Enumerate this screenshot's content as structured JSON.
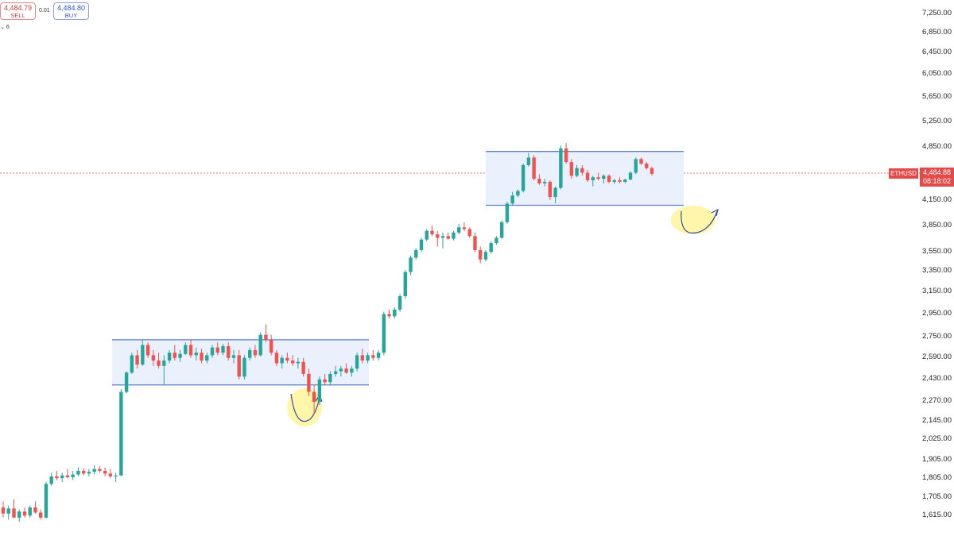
{
  "trade_panel": {
    "sell_price": "4,484.79",
    "sell_label": "SELL",
    "spread": "0.01",
    "buy_price": "4,484.80",
    "buy_label": "BUY",
    "quantity": "6"
  },
  "symbol": "ETHUSD",
  "last_price": "4,484.88",
  "countdown": "08:18:02",
  "colors": {
    "up": "#26a69a",
    "down": "#ef5350",
    "range_fill": "#eaf0fc",
    "range_line": "#5a7ed0",
    "highlight": "#fff59a",
    "tag": "#e34b4b"
  },
  "chart_data": {
    "type": "candlestick",
    "y_ticks": [
      7250,
      6850,
      6450,
      6050,
      5650,
      5250,
      4850,
      4150,
      3850,
      3550,
      3350,
      3150,
      2950,
      2750,
      2590,
      2430,
      2270,
      2145,
      2025,
      1905,
      1805,
      1705,
      1615
    ],
    "y_tick_labels": [
      "7,250.00",
      "6,850.00",
      "6,450.00",
      "6,050.00",
      "5,650.00",
      "5,250.00",
      "4,850.00",
      "4,150.00",
      "3,850.00",
      "3,550.00",
      "3,350.00",
      "3,150.00",
      "2,950.00",
      "2,750.00",
      "2,590.00",
      "2,430.00",
      "2,270.00",
      "2,145.00",
      "2,025.00",
      "1,905.00",
      "1,805.00",
      "1,705.00",
      "1,615.00"
    ],
    "ranges": [
      {
        "name": "range-1",
        "high": 2720,
        "low": 2380
      },
      {
        "name": "range-2",
        "high": 4780,
        "low": 4080
      }
    ],
    "candles": [
      [
        1650,
        1680,
        1600,
        1620
      ],
      [
        1620,
        1660,
        1590,
        1645
      ],
      [
        1645,
        1690,
        1630,
        1600
      ],
      [
        1600,
        1640,
        1580,
        1630
      ],
      [
        1630,
        1650,
        1600,
        1610
      ],
      [
        1610,
        1660,
        1600,
        1650
      ],
      [
        1650,
        1680,
        1620,
        1625
      ],
      [
        1625,
        1640,
        1590,
        1600
      ],
      [
        1600,
        1780,
        1595,
        1770
      ],
      [
        1770,
        1830,
        1760,
        1810
      ],
      [
        1810,
        1840,
        1790,
        1800
      ],
      [
        1800,
        1830,
        1780,
        1815
      ],
      [
        1815,
        1850,
        1800,
        1805
      ],
      [
        1805,
        1840,
        1790,
        1820
      ],
      [
        1820,
        1860,
        1810,
        1840
      ],
      [
        1840,
        1855,
        1815,
        1825
      ],
      [
        1825,
        1850,
        1810,
        1835
      ],
      [
        1835,
        1870,
        1820,
        1850
      ],
      [
        1850,
        1865,
        1830,
        1840
      ],
      [
        1840,
        1860,
        1810,
        1825
      ],
      [
        1825,
        1850,
        1800,
        1810
      ],
      [
        1810,
        1830,
        1780,
        1815
      ],
      [
        1815,
        2350,
        1810,
        2330
      ],
      [
        2330,
        2480,
        2320,
        2470
      ],
      [
        2470,
        2620,
        2460,
        2600
      ],
      [
        2600,
        2640,
        2500,
        2530
      ],
      [
        2530,
        2720,
        2520,
        2680
      ],
      [
        2680,
        2700,
        2580,
        2600
      ],
      [
        2600,
        2640,
        2520,
        2560
      ],
      [
        2560,
        2620,
        2500,
        2520
      ],
      [
        2520,
        2600,
        2380,
        2560
      ],
      [
        2560,
        2640,
        2540,
        2620
      ],
      [
        2620,
        2680,
        2560,
        2580
      ],
      [
        2580,
        2640,
        2550,
        2610
      ],
      [
        2610,
        2700,
        2600,
        2680
      ],
      [
        2680,
        2720,
        2580,
        2600
      ],
      [
        2600,
        2660,
        2560,
        2620
      ],
      [
        2620,
        2650,
        2540,
        2560
      ],
      [
        2560,
        2620,
        2540,
        2600
      ],
      [
        2600,
        2680,
        2580,
        2660
      ],
      [
        2660,
        2700,
        2600,
        2620
      ],
      [
        2620,
        2690,
        2600,
        2670
      ],
      [
        2670,
        2700,
        2560,
        2580
      ],
      [
        2580,
        2640,
        2540,
        2600
      ],
      [
        2600,
        2640,
        2420,
        2440
      ],
      [
        2440,
        2600,
        2420,
        2580
      ],
      [
        2580,
        2660,
        2560,
        2640
      ],
      [
        2640,
        2680,
        2580,
        2600
      ],
      [
        2600,
        2780,
        2590,
        2760
      ],
      [
        2760,
        2850,
        2700,
        2720
      ],
      [
        2720,
        2760,
        2600,
        2620
      ],
      [
        2620,
        2640,
        2520,
        2540
      ],
      [
        2540,
        2600,
        2500,
        2580
      ],
      [
        2580,
        2620,
        2540,
        2560
      ],
      [
        2560,
        2600,
        2520,
        2540
      ],
      [
        2540,
        2580,
        2500,
        2550
      ],
      [
        2550,
        2580,
        2440,
        2460
      ],
      [
        2460,
        2500,
        2300,
        2330
      ],
      [
        2330,
        2380,
        2180,
        2260
      ],
      [
        2260,
        2440,
        2240,
        2420
      ],
      [
        2420,
        2460,
        2380,
        2400
      ],
      [
        2400,
        2480,
        2380,
        2460
      ],
      [
        2460,
        2520,
        2440,
        2480
      ],
      [
        2480,
        2520,
        2440,
        2500
      ],
      [
        2500,
        2540,
        2460,
        2470
      ],
      [
        2470,
        2520,
        2440,
        2500
      ],
      [
        2500,
        2620,
        2480,
        2600
      ],
      [
        2600,
        2650,
        2540,
        2560
      ],
      [
        2560,
        2620,
        2540,
        2600
      ],
      [
        2600,
        2640,
        2560,
        2580
      ],
      [
        2580,
        2640,
        2560,
        2620
      ],
      [
        2620,
        2960,
        2600,
        2940
      ],
      [
        2940,
        2980,
        2900,
        2920
      ],
      [
        2920,
        3000,
        2900,
        2980
      ],
      [
        2980,
        3120,
        2960,
        3100
      ],
      [
        3100,
        3350,
        3080,
        3330
      ],
      [
        3330,
        3500,
        3300,
        3480
      ],
      [
        3480,
        3580,
        3460,
        3560
      ],
      [
        3560,
        3700,
        3540,
        3680
      ],
      [
        3680,
        3800,
        3660,
        3780
      ],
      [
        3780,
        3840,
        3720,
        3740
      ],
      [
        3740,
        3780,
        3600,
        3700
      ],
      [
        3700,
        3760,
        3580,
        3720
      ],
      [
        3720,
        3760,
        3680,
        3690
      ],
      [
        3690,
        3780,
        3670,
        3760
      ],
      [
        3760,
        3860,
        3740,
        3820
      ],
      [
        3820,
        3880,
        3780,
        3800
      ],
      [
        3800,
        3820,
        3700,
        3720
      ],
      [
        3720,
        3760,
        3540,
        3560
      ],
      [
        3560,
        3600,
        3420,
        3460
      ],
      [
        3460,
        3560,
        3440,
        3540
      ],
      [
        3540,
        3660,
        3520,
        3640
      ],
      [
        3640,
        3720,
        3620,
        3700
      ],
      [
        3700,
        3900,
        3690,
        3880
      ],
      [
        3880,
        4120,
        3860,
        4100
      ],
      [
        4100,
        4250,
        4080,
        4200
      ],
      [
        4200,
        4280,
        4180,
        4260
      ],
      [
        4260,
        4620,
        4240,
        4600
      ],
      [
        4600,
        4760,
        4580,
        4700
      ],
      [
        4700,
        4730,
        4400,
        4420
      ],
      [
        4420,
        4480,
        4340,
        4360
      ],
      [
        4360,
        4420,
        4320,
        4380
      ],
      [
        4380,
        4400,
        4140,
        4180
      ],
      [
        4180,
        4320,
        4100,
        4300
      ],
      [
        4300,
        4860,
        4280,
        4820
      ],
      [
        4820,
        4900,
        4620,
        4640
      ],
      [
        4640,
        4680,
        4420,
        4460
      ],
      [
        4460,
        4600,
        4440,
        4560
      ],
      [
        4560,
        4600,
        4460,
        4500
      ],
      [
        4500,
        4540,
        4380,
        4400
      ],
      [
        4400,
        4460,
        4320,
        4440
      ],
      [
        4440,
        4500,
        4400,
        4420
      ],
      [
        4420,
        4480,
        4360,
        4460
      ],
      [
        4460,
        4480,
        4360,
        4380
      ],
      [
        4380,
        4420,
        4350,
        4400
      ],
      [
        4400,
        4440,
        4360,
        4380
      ],
      [
        4380,
        4420,
        4360,
        4410
      ],
      [
        4410,
        4520,
        4400,
        4500
      ],
      [
        4500,
        4700,
        4480,
        4680
      ],
      [
        4680,
        4700,
        4600,
        4620
      ],
      [
        4620,
        4640,
        4540,
        4560
      ],
      [
        4560,
        4580,
        4460,
        4485
      ]
    ]
  }
}
